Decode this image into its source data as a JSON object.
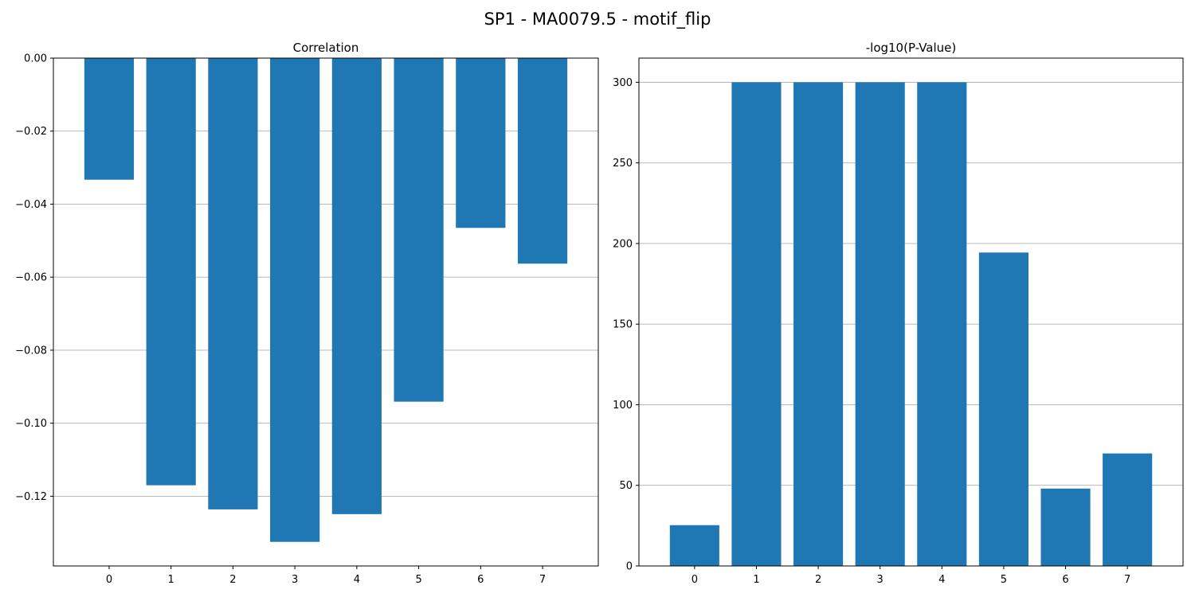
{
  "figure": {
    "title": "SP1 - MA0079.5 - motif_flip"
  },
  "chart_data": [
    {
      "type": "bar",
      "title": "Correlation",
      "xlabel": "",
      "ylabel": "",
      "categories": [
        "0",
        "1",
        "2",
        "3",
        "4",
        "5",
        "6",
        "7"
      ],
      "values": [
        -0.0333,
        -0.117,
        -0.1236,
        -0.1325,
        -0.1249,
        -0.0941,
        -0.0465,
        -0.0563
      ],
      "ylim": [
        -0.1391,
        0.0
      ],
      "yticks": [
        0.0,
        -0.02,
        -0.04,
        -0.06,
        -0.08,
        -0.1,
        -0.12
      ],
      "ytick_labels": [
        "0.00",
        "−0.02",
        "−0.04",
        "−0.06",
        "−0.08",
        "−0.10",
        "−0.12"
      ],
      "grid": "y",
      "bar_color": "#1f77b4"
    },
    {
      "type": "bar",
      "title": "-log10(P-Value)",
      "xlabel": "",
      "ylabel": "",
      "categories": [
        "0",
        "1",
        "2",
        "3",
        "4",
        "5",
        "6",
        "7"
      ],
      "values": [
        25.3,
        300,
        300,
        300,
        300,
        194.4,
        48.0,
        69.8
      ],
      "ylim": [
        0,
        315
      ],
      "yticks": [
        0,
        50,
        100,
        150,
        200,
        250,
        300
      ],
      "ytick_labels": [
        "0",
        "50",
        "100",
        "150",
        "200",
        "250",
        "300"
      ],
      "grid": "y",
      "bar_color": "#1f77b4"
    }
  ]
}
